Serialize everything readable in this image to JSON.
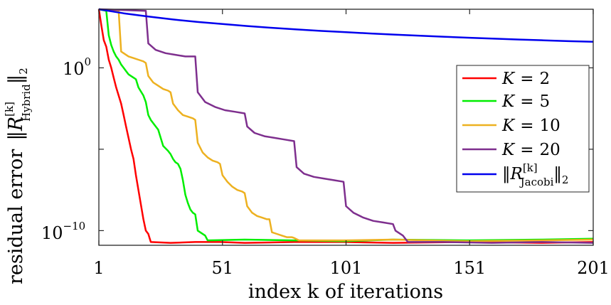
{
  "chart_data": {
    "type": "line",
    "title": "",
    "xlabel": "index k of iterations",
    "ylabel": "residual error ||R^[k]_Hybrid||_2",
    "ylabel_parts": {
      "prefix": "residual error",
      "symbol": "R",
      "superscript": "[k]",
      "subscript": "Hybrid",
      "suffix": "2"
    },
    "xlim": [
      1,
      201
    ],
    "ylim_log10": [
      -10.9,
      3.6
    ],
    "y_scale": "log",
    "x_ticks": [
      1,
      51,
      101,
      151,
      201
    ],
    "x_tick_labels": [
      "1",
      "51",
      "101",
      "151",
      "201"
    ],
    "y_ticks_log10": [
      0,
      -10
    ],
    "y_tick_labels": [
      {
        "base": "10",
        "exp": "0"
      },
      {
        "base": "10",
        "exp": "−10"
      }
    ],
    "y_minor_ticks_log10": [
      -5
    ],
    "legend_position": "right",
    "series": [
      {
        "name": "K = 2",
        "K": "2",
        "color": "#ff0000",
        "x": [
          1,
          2,
          3,
          4,
          5,
          6,
          7,
          8,
          9,
          10,
          11,
          12,
          13,
          14,
          15,
          16,
          17,
          18,
          19,
          20,
          21,
          22,
          30,
          40,
          50,
          60,
          80,
          100,
          120,
          150,
          180,
          201
        ],
        "log10_y": [
          3.6,
          2.6,
          1.7,
          1.3,
          0.5,
          0.0,
          -0.6,
          -1.2,
          -1.7,
          -2.2,
          -2.9,
          -3.6,
          -4.3,
          -5.0,
          -5.6,
          -6.6,
          -7.5,
          -8.4,
          -9.3,
          -10.0,
          -10.2,
          -10.7,
          -10.75,
          -10.7,
          -10.7,
          -10.75,
          -10.7,
          -10.7,
          -10.75,
          -10.7,
          -10.75,
          -10.7
        ]
      },
      {
        "name": "K = 5",
        "K": "5",
        "color": "#00ee00",
        "x": [
          1,
          4,
          5,
          6,
          7,
          8,
          9,
          10,
          11,
          12,
          13,
          14,
          15,
          16,
          17,
          19,
          20,
          21,
          22,
          23,
          24,
          25,
          26,
          27,
          29,
          30,
          31,
          32,
          33,
          34,
          35,
          36,
          37,
          38,
          39,
          40,
          41,
          44,
          45,
          60,
          80,
          100,
          120,
          150,
          180,
          201
        ],
        "log10_y": [
          3.6,
          3.5,
          2.0,
          1.4,
          1.0,
          0.7,
          0.5,
          0.2,
          0.0,
          -0.2,
          -0.4,
          -0.5,
          -0.6,
          -0.7,
          -1.2,
          -1.7,
          -2.1,
          -2.9,
          -3.2,
          -3.4,
          -3.6,
          -3.8,
          -4.3,
          -4.8,
          -5.1,
          -5.3,
          -5.6,
          -5.8,
          -5.9,
          -6.2,
          -6.9,
          -7.8,
          -8.3,
          -8.7,
          -8.9,
          -9.0,
          -10.0,
          -10.3,
          -10.6,
          -10.55,
          -10.6,
          -10.65,
          -10.55,
          -10.6,
          -10.55,
          -10.5
        ]
      },
      {
        "name": "K = 10",
        "K": "10",
        "color": "#edb120",
        "x": [
          1,
          9,
          10,
          11,
          13,
          15,
          17,
          19,
          20,
          21,
          23,
          25,
          27,
          29,
          30,
          31,
          33,
          35,
          37,
          39,
          40,
          41,
          43,
          45,
          47,
          49,
          50,
          51,
          53,
          55,
          57,
          59,
          60,
          61,
          63,
          65,
          67,
          69,
          70,
          71,
          73,
          75,
          77,
          79,
          80,
          82,
          100,
          120,
          150,
          180,
          201
        ],
        "log10_y": [
          3.6,
          3.5,
          1.0,
          0.9,
          0.7,
          0.6,
          0.5,
          0.4,
          0.3,
          -0.5,
          -0.9,
          -1.1,
          -1.3,
          -1.4,
          -1.5,
          -2.2,
          -2.6,
          -2.9,
          -3.0,
          -3.1,
          -3.2,
          -4.6,
          -5.2,
          -5.5,
          -5.7,
          -5.8,
          -5.9,
          -6.6,
          -7.0,
          -7.3,
          -7.5,
          -7.6,
          -7.7,
          -8.5,
          -8.9,
          -9.1,
          -9.2,
          -9.3,
          -9.3,
          -10.1,
          -10.2,
          -10.3,
          -10.4,
          -10.4,
          -10.45,
          -10.6,
          -10.6,
          -10.55,
          -10.65,
          -10.6,
          -10.55
        ]
      },
      {
        "name": "K = 20",
        "K": "20",
        "color": "#7e2f8e",
        "x": [
          1,
          20,
          21,
          24,
          28,
          32,
          36,
          40,
          41,
          44,
          48,
          52,
          56,
          60,
          61,
          64,
          68,
          72,
          76,
          80,
          81,
          84,
          88,
          92,
          96,
          100,
          101,
          104,
          108,
          112,
          116,
          120,
          121,
          124,
          126,
          140,
          160,
          180,
          201
        ],
        "log10_y": [
          3.6,
          3.5,
          1.5,
          1.1,
          0.9,
          0.8,
          0.7,
          0.7,
          -1.5,
          -2.1,
          -2.4,
          -2.6,
          -2.7,
          -2.8,
          -3.6,
          -4.0,
          -4.2,
          -4.3,
          -4.4,
          -4.5,
          -6.1,
          -6.5,
          -6.7,
          -6.8,
          -6.9,
          -7.0,
          -8.5,
          -8.9,
          -9.2,
          -9.4,
          -9.5,
          -9.6,
          -10.0,
          -10.3,
          -10.7,
          -10.7,
          -10.75,
          -10.7,
          -10.75
        ]
      },
      {
        "name": "||R^[k]_Jacobi||_2",
        "K": "",
        "color": "#0000ee",
        "x": [
          1,
          11,
          21,
          31,
          41,
          51,
          61,
          71,
          81,
          91,
          101,
          111,
          121,
          131,
          141,
          151,
          161,
          171,
          181,
          191,
          201
        ],
        "log10_y": [
          3.6,
          3.35,
          3.15,
          2.97,
          2.82,
          2.69,
          2.57,
          2.46,
          2.36,
          2.27,
          2.19,
          2.11,
          2.04,
          1.97,
          1.91,
          1.85,
          1.79,
          1.74,
          1.69,
          1.64,
          1.6
        ]
      }
    ],
    "legend_labels": {
      "K": "K",
      "eq": "=",
      "jacobi_symbol": "R",
      "jacobi_sup": "[k]",
      "jacobi_sub": "Jacobi",
      "jacobi_suffix": "2"
    }
  }
}
